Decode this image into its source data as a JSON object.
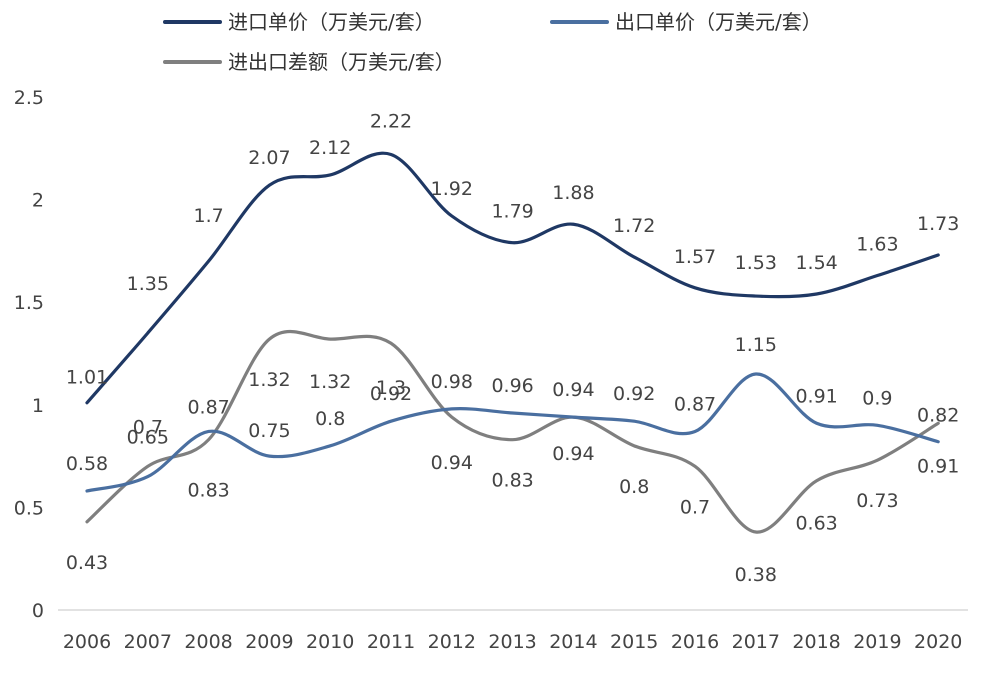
{
  "chart_data": {
    "type": "line",
    "categories": [
      "2006",
      "2007",
      "2008",
      "2009",
      "2010",
      "2011",
      "2012",
      "2013",
      "2014",
      "2015",
      "2016",
      "2017",
      "2018",
      "2019",
      "2020"
    ],
    "ylim": [
      0,
      2.5
    ],
    "yticks": [
      "0",
      "0.5",
      "1",
      "1.5",
      "2",
      "2.5"
    ],
    "grid": false,
    "legend_position": "top",
    "series": [
      {
        "name": "进口单价（万美元/套）",
        "color": "#1f3864",
        "values": [
          1.01,
          1.35,
          1.7,
          2.07,
          2.12,
          2.22,
          1.92,
          1.79,
          1.88,
          1.72,
          1.57,
          1.53,
          1.54,
          1.63,
          1.73
        ],
        "labels": [
          "1.01",
          "1.35",
          "1.7",
          "2.07",
          "2.12",
          "2.22",
          "1.92",
          "1.79",
          "1.88",
          "1.72",
          "1.57",
          "1.53",
          "1.54",
          "1.63",
          "1.73"
        ]
      },
      {
        "name": "出口单价（万美元/套）",
        "color": "#4a6fa0",
        "values": [
          0.58,
          0.65,
          0.87,
          0.75,
          0.8,
          0.92,
          0.98,
          0.96,
          0.94,
          0.92,
          0.87,
          1.15,
          0.91,
          0.9,
          0.82
        ],
        "labels": [
          "0.58",
          "0.65",
          "0.87",
          "0.75",
          "0.8",
          "0.92",
          "0.98",
          "0.96",
          "0.94",
          "0.92",
          "0.87",
          "1.15",
          "0.91",
          "0.9",
          "0.82"
        ]
      },
      {
        "name": "进出口差额（万美元/套）",
        "color": "#7f7f7f",
        "values": [
          0.43,
          0.7,
          0.83,
          1.32,
          1.32,
          1.3,
          0.94,
          0.83,
          0.94,
          0.8,
          0.7,
          0.38,
          0.63,
          0.73,
          0.91
        ],
        "labels": [
          "0.43",
          "0.7",
          "0.83",
          "1.32",
          "1.32",
          "1.3",
          "0.94",
          "0.83",
          "0.94",
          "0.8",
          "0.7",
          "0.38",
          "0.63",
          "0.73",
          "0.91"
        ]
      }
    ]
  }
}
